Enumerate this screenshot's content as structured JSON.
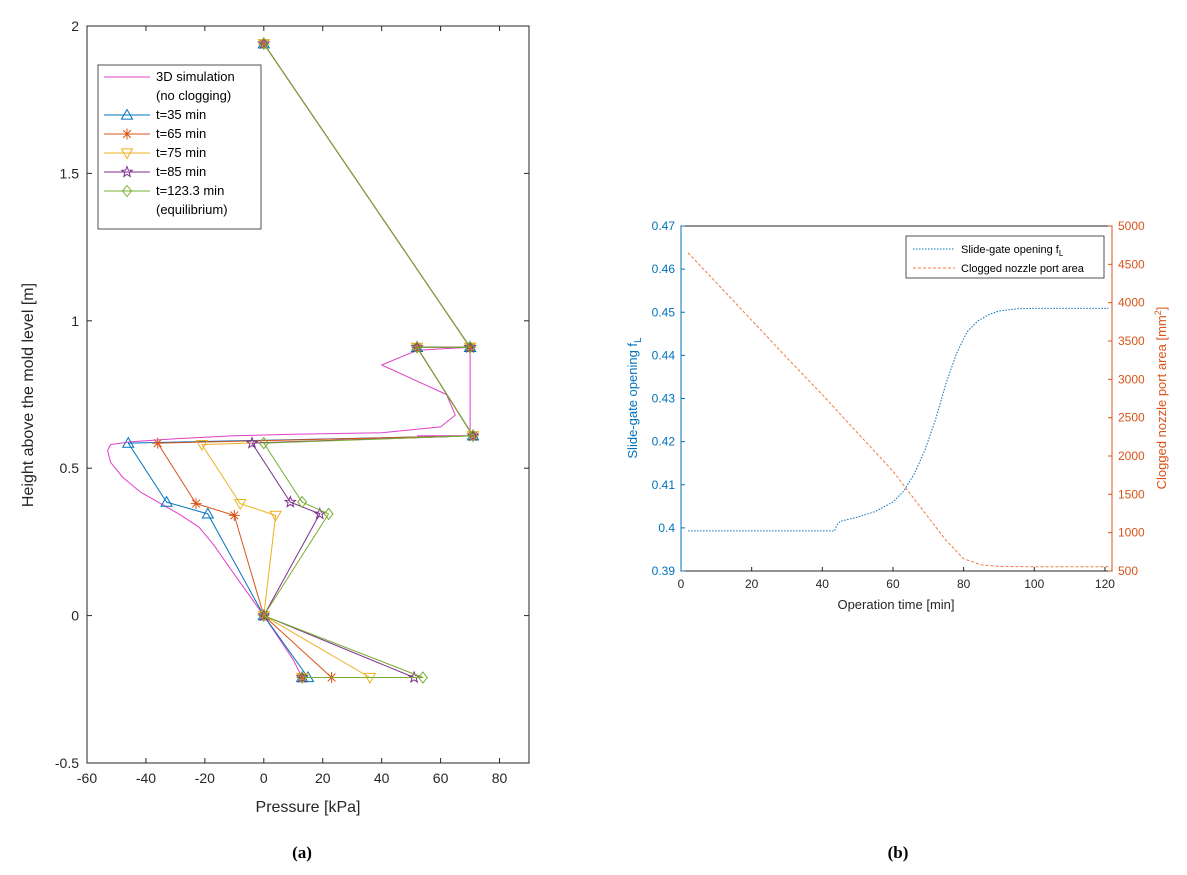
{
  "captions": {
    "a": "(a)",
    "b": "(b)"
  },
  "chart_data": [
    {
      "id": "a",
      "type": "line",
      "xlabel": "Pressure [kPa]",
      "ylabel": "Height above the mold level [m]",
      "xlim": [
        -60,
        90
      ],
      "ylim": [
        -0.5,
        2
      ],
      "xticks": [
        -60,
        -40,
        -20,
        0,
        20,
        40,
        60,
        80
      ],
      "yticks": [
        -0.5,
        0,
        0.5,
        1,
        1.5,
        2
      ],
      "legend_position": "top-left",
      "series": [
        {
          "name": "3D simulation",
          "name_line2": "(no clogging)",
          "color": "#e040c8",
          "marker": "none",
          "x": [
            13,
            10,
            0,
            -10,
            -17,
            -22,
            -28,
            -35,
            -42,
            -48,
            -52,
            -53,
            -52,
            -45,
            -30,
            -10,
            10,
            40,
            60,
            65,
            62,
            40,
            52,
            70,
            70,
            52
          ],
          "y": [
            -0.21,
            -0.15,
            0,
            0.14,
            0.24,
            0.3,
            0.34,
            0.38,
            0.42,
            0.47,
            0.52,
            0.56,
            0.58,
            0.59,
            0.6,
            0.61,
            0.615,
            0.62,
            0.64,
            0.68,
            0.75,
            0.85,
            0.9,
            0.91,
            0.61,
            0.61
          ]
        },
        {
          "name": "t=35 min",
          "color": "#0072bd",
          "marker": "triangle-up",
          "x": [
            0,
            70,
            70,
            52,
            71,
            -46,
            -33,
            -19,
            0,
            15,
            13
          ],
          "y": [
            1.94,
            0.91,
            0.91,
            0.91,
            0.61,
            0.585,
            0.385,
            0.345,
            0,
            -0.21,
            -0.21
          ]
        },
        {
          "name": "t=65 min",
          "color": "#d95319",
          "marker": "asterisk",
          "x": [
            0,
            70,
            70,
            52,
            71,
            -36,
            -23,
            -10,
            0,
            23,
            13
          ],
          "y": [
            1.94,
            0.91,
            0.91,
            0.91,
            0.61,
            0.585,
            0.38,
            0.34,
            0,
            -0.21,
            -0.21
          ]
        },
        {
          "name": "t=75 min",
          "color": "#edb120",
          "marker": "triangle-down",
          "x": [
            0,
            70,
            70,
            52,
            71,
            -21,
            -8,
            4,
            0,
            36,
            13
          ],
          "y": [
            1.94,
            0.91,
            0.91,
            0.91,
            0.61,
            0.58,
            0.38,
            0.34,
            0,
            -0.21,
            -0.21
          ]
        },
        {
          "name": "t=85 min",
          "color": "#7e2f8e",
          "marker": "pentagram",
          "x": [
            0,
            70,
            70,
            52,
            71,
            -4,
            9,
            19,
            0,
            51,
            13
          ],
          "y": [
            1.94,
            0.91,
            0.91,
            0.91,
            0.61,
            0.585,
            0.385,
            0.345,
            0,
            -0.21,
            -0.21
          ]
        },
        {
          "name": "t=123.3 min",
          "name_line2": "(equilibrium)",
          "color": "#77ac30",
          "marker": "diamond",
          "x": [
            0,
            70,
            70,
            52,
            71,
            0,
            13,
            22,
            0,
            54,
            13
          ],
          "y": [
            1.94,
            0.91,
            0.91,
            0.91,
            0.61,
            0.585,
            0.385,
            0.345,
            0,
            -0.21,
            -0.21
          ]
        }
      ]
    },
    {
      "id": "b",
      "type": "line",
      "xlabel": "Operation time [min]",
      "ylabel_left": "Slide-gate opening f",
      "ylabel_left_sub": "L",
      "ylabel_right": "Clogged nozzle port area [mm",
      "ylabel_right_sup": "2",
      "ylabel_right_end": "]",
      "xlim": [
        0,
        122
      ],
      "ylim_left": [
        0.39,
        0.47
      ],
      "ylim_right": [
        500,
        5000
      ],
      "xticks": [
        0,
        20,
        40,
        60,
        80,
        100,
        120
      ],
      "yticks_left": [
        0.39,
        0.4,
        0.41,
        0.42,
        0.43,
        0.44,
        0.45,
        0.46,
        0.47
      ],
      "yticks_right": [
        500,
        1000,
        1500,
        2000,
        2500,
        3000,
        3500,
        4000,
        4500,
        5000
      ],
      "left_axis_color": "#0072bd",
      "right_axis_color": "#d95319",
      "legend_position": "top-right",
      "series": [
        {
          "name": "Slide-gate opening f",
          "name_sub": "L",
          "axis": "left",
          "color": "#0072bd",
          "style": "dotted",
          "x": [
            2,
            10,
            20,
            30,
            40,
            43.5,
            44,
            45,
            50,
            55,
            60,
            63,
            66,
            69,
            72,
            75,
            78,
            81,
            84,
            87,
            90,
            95,
            100,
            110,
            121
          ],
          "y": [
            0.3993,
            0.3993,
            0.3993,
            0.3993,
            0.3993,
            0.3993,
            0.4005,
            0.4015,
            0.4025,
            0.4038,
            0.406,
            0.4085,
            0.4125,
            0.418,
            0.425,
            0.4335,
            0.4405,
            0.4455,
            0.448,
            0.4494,
            0.4503,
            0.4508,
            0.4509,
            0.4509,
            0.4509
          ]
        },
        {
          "name": "Clogged nozzle port area",
          "axis": "right",
          "color": "#f07a3c",
          "style": "dashed",
          "x": [
            2,
            10,
            20,
            30,
            40,
            50,
            60,
            70,
            75,
            80,
            85,
            90,
            100,
            110,
            121
          ],
          "y": [
            4650,
            4260,
            3770,
            3280,
            2800,
            2300,
            1800,
            1200,
            900,
            660,
            580,
            560,
            555,
            555,
            555
          ]
        }
      ]
    }
  ]
}
